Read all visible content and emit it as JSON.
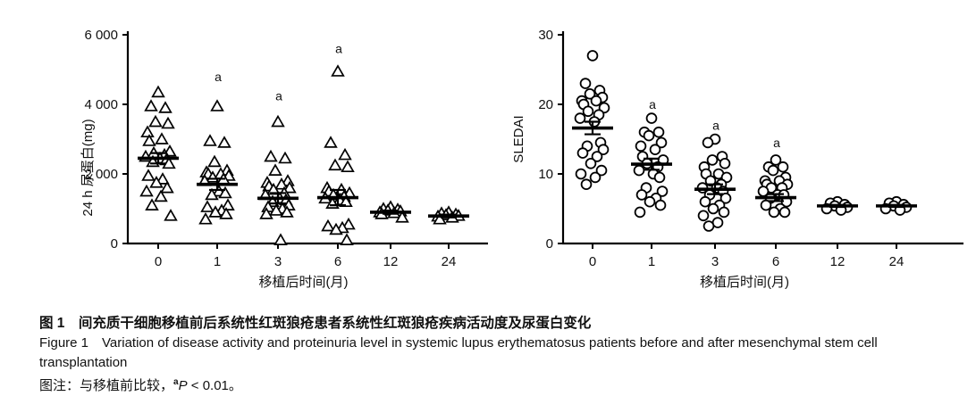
{
  "figure": {
    "caption_zh": "图 1　间充质干细胞移植前后系统性红斑狼疮患者系统性红斑狼疮疾病活动度及尿蛋白变化",
    "caption_en_line1": "Figure 1　Variation of disease activity and proteinuria level in systemic lupus erythematosus patients before and after mesenchymal stem cell",
    "caption_en_line2": "transplantation",
    "note": {
      "prefix": "图注：与移植前比较，",
      "sup": "a",
      "italic": "P",
      "suffix": " < 0.01。"
    }
  },
  "chart_data": [
    {
      "type": "scatter",
      "marker": "triangle",
      "title": "",
      "xlabel": "移植后时间(月)",
      "ylabel": "24 h 尿蛋白(mg)",
      "ylim": [
        0,
        6000
      ],
      "yticks": [
        0,
        2000,
        4000,
        6000
      ],
      "ytick_labels": [
        "0",
        "2 000",
        "4 000",
        "6 000"
      ],
      "categories": [
        "0",
        "1",
        "3",
        "6",
        "12",
        "24"
      ],
      "legend": null,
      "grid": false,
      "groups": [
        {
          "category": "0",
          "values": [
            4350,
            3950,
            3900,
            3500,
            3450,
            3200,
            3000,
            2950,
            2650,
            2600,
            2550,
            2500,
            2450,
            2400,
            2350,
            2300,
            1950,
            1850,
            1750,
            1600,
            1500,
            1350,
            1100,
            800
          ],
          "mean": 2450,
          "sem": 150,
          "sig": "",
          "sig_value": null
        },
        {
          "category": "1",
          "values": [
            3950,
            2950,
            2900,
            2350,
            2100,
            2050,
            2000,
            2000,
            1950,
            1900,
            1850,
            1800,
            1500,
            1450,
            1400,
            1100,
            1050,
            950,
            900,
            850,
            700
          ],
          "mean": 1700,
          "sem": 160,
          "sig": "a",
          "sig_value": 4800
        },
        {
          "category": "3",
          "values": [
            3500,
            2500,
            2450,
            2100,
            1800,
            1750,
            1700,
            1650,
            1600,
            1550,
            1450,
            1400,
            1300,
            1250,
            1200,
            1100,
            1050,
            1000,
            950,
            900,
            850,
            100
          ],
          "mean": 1300,
          "sem": 150,
          "sig": "a",
          "sig_value": 4250
        },
        {
          "category": "6",
          "values": [
            4950,
            2900,
            2550,
            2250,
            2200,
            1600,
            1550,
            1500,
            1450,
            1400,
            1350,
            1300,
            1250,
            1200,
            1150,
            550,
            500,
            450,
            400,
            100
          ],
          "mean": 1320,
          "sem": 220,
          "sig": "a",
          "sig_value": 5600
        },
        {
          "category": "12",
          "values": [
            1050,
            1000,
            980,
            950,
            930,
            900,
            880,
            850,
            750
          ],
          "mean": 900,
          "sem": 45,
          "sig": "",
          "sig_value": null
        },
        {
          "category": "24",
          "values": [
            900,
            870,
            840,
            820,
            800,
            780,
            750,
            700
          ],
          "mean": 790,
          "sem": 40,
          "sig": "",
          "sig_value": null
        }
      ]
    },
    {
      "type": "scatter",
      "marker": "circle",
      "title": "",
      "xlabel": "移植后时间(月)",
      "ylabel": "SLEDAI",
      "ylim": [
        0,
        30
      ],
      "yticks": [
        0,
        10,
        20,
        30
      ],
      "ytick_labels": [
        "0",
        "10",
        "20",
        "30"
      ],
      "categories": [
        "0",
        "1",
        "3",
        "6",
        "12",
        "24"
      ],
      "legend": null,
      "grid": false,
      "groups": [
        {
          "category": "0",
          "values": [
            27,
            23,
            22,
            21.5,
            21,
            20.5,
            20.5,
            20,
            19.5,
            19,
            18.5,
            18,
            17.5,
            14.5,
            14,
            13.5,
            13,
            12.5,
            11.5,
            10.5,
            10,
            9.5,
            8.5
          ],
          "mean": 16.6,
          "sem": 0.9,
          "sig": "",
          "sig_value": null
        },
        {
          "category": "1",
          "values": [
            18,
            16,
            16,
            15.5,
            14.5,
            14,
            13.5,
            12.5,
            12,
            11.5,
            11,
            10.5,
            10,
            9.5,
            8,
            7.5,
            7,
            6.5,
            6,
            5.5,
            4.5
          ],
          "mean": 11.4,
          "sem": 0.8,
          "sig": "a",
          "sig_value": 20
        },
        {
          "category": "3",
          "values": [
            15,
            14.5,
            12.5,
            12,
            11.5,
            11,
            10,
            10,
            9.5,
            9,
            8.5,
            8,
            8,
            7.5,
            7,
            6.5,
            6,
            5.5,
            5,
            4.5,
            4,
            3,
            2.5
          ],
          "mean": 7.8,
          "sem": 0.7,
          "sig": "a",
          "sig_value": 17
        },
        {
          "category": "6",
          "values": [
            12,
            11,
            11,
            10.5,
            9.5,
            9,
            9,
            8.5,
            8.5,
            8,
            8,
            7.5,
            7,
            7,
            6.5,
            6,
            5.5,
            5,
            4.5,
            4.5
          ],
          "mean": 6.6,
          "sem": 0.5,
          "sig": "a",
          "sig_value": 14.5
        },
        {
          "category": "12",
          "values": [
            6,
            5.8,
            5.6,
            5.4,
            5.2,
            5,
            4.8
          ],
          "mean": 5.4,
          "sem": 0.15,
          "sig": "",
          "sig_value": null
        },
        {
          "category": "24",
          "values": [
            6,
            5.8,
            5.6,
            5.4,
            5.2,
            5,
            4.8
          ],
          "mean": 5.4,
          "sem": 0.15,
          "sig": "",
          "sig_value": null
        }
      ]
    }
  ]
}
